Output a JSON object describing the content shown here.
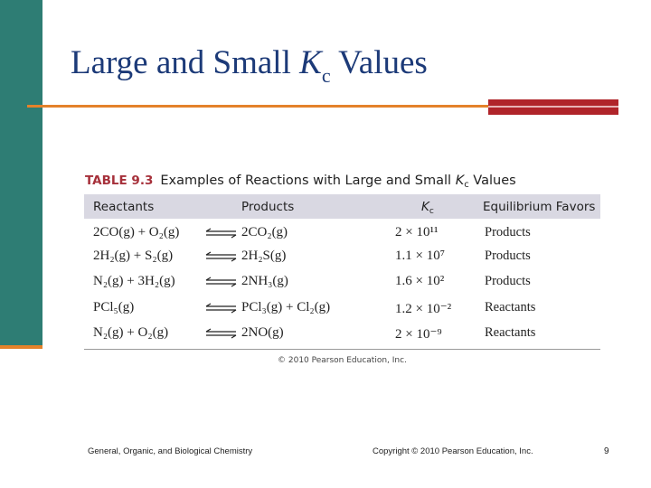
{
  "slide": {
    "title_pre": "Large and Small ",
    "title_k": "K",
    "title_sub": "c",
    "title_post": " Values"
  },
  "table": {
    "label": "TABLE 9.3",
    "caption_pre": "Examples of Reactions with Large and Small ",
    "caption_k": "K",
    "caption_sub": "c",
    "caption_post": " Values",
    "headers": {
      "reactants": "Reactants",
      "products": "Products",
      "kc": "K",
      "kc_sub": "c",
      "favors": "Equilibrium Favors"
    },
    "rows": [
      {
        "reactants": "2CO(g) + O₂(g)",
        "products": "2CO₂(g)",
        "kc": "2 × 10¹¹",
        "favors": "Products"
      },
      {
        "reactants": "2H₂(g) + S₂(g)",
        "products": "2H₂S(g)",
        "kc": "1.1 × 10⁷",
        "favors": "Products"
      },
      {
        "reactants": "N₂(g) + 3H₂(g)",
        "products": "2NH₃(g)",
        "kc": "1.6 × 10²",
        "favors": "Products"
      },
      {
        "reactants": "PCl₅(g)",
        "products": "PCl₃(g) + Cl₂(g)",
        "kc": "1.2 × 10⁻²",
        "favors": "Reactants"
      },
      {
        "reactants": "N₂(g) + O₂(g)",
        "products": "2NO(g)",
        "kc": "2 × 10⁻⁹",
        "favors": "Reactants"
      }
    ],
    "credit": "© 2010 Pearson Education, Inc."
  },
  "footer": {
    "left": "General, Organic, and Biological Chemistry",
    "center": "Copyright © 2010 Pearson Education, Inc.",
    "page": "9"
  },
  "colors": {
    "title": "#1c3a78",
    "left_bar": "#2e7d74",
    "accent_orange": "#e4822a",
    "accent_red": "#b0242a",
    "table_header_bg": "#d9d8e2"
  }
}
